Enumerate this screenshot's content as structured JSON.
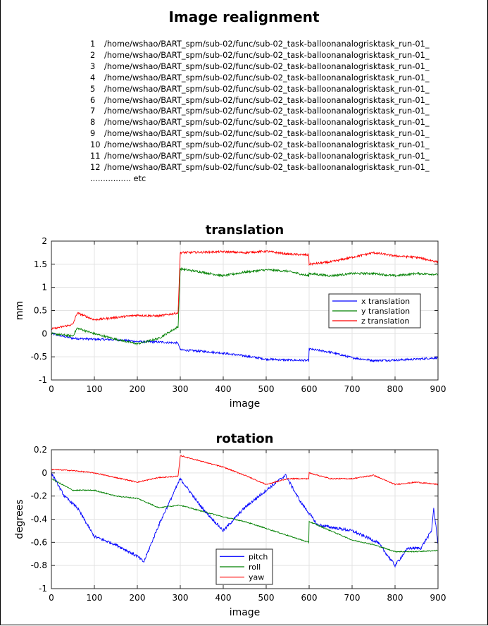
{
  "window": {
    "title": "Image realignment",
    "files": [
      {
        "num": "1",
        "path": "/home/wshao/BART_spm/sub-02/func/sub-02_task-balloonanalogrisktask_run-01_"
      },
      {
        "num": "2",
        "path": "/home/wshao/BART_spm/sub-02/func/sub-02_task-balloonanalogrisktask_run-01_"
      },
      {
        "num": "3",
        "path": "/home/wshao/BART_spm/sub-02/func/sub-02_task-balloonanalogrisktask_run-01_"
      },
      {
        "num": "4",
        "path": "/home/wshao/BART_spm/sub-02/func/sub-02_task-balloonanalogrisktask_run-01_"
      },
      {
        "num": "5",
        "path": "/home/wshao/BART_spm/sub-02/func/sub-02_task-balloonanalogrisktask_run-01_"
      },
      {
        "num": "6",
        "path": "/home/wshao/BART_spm/sub-02/func/sub-02_task-balloonanalogrisktask_run-01_"
      },
      {
        "num": "7",
        "path": "/home/wshao/BART_spm/sub-02/func/sub-02_task-balloonanalogrisktask_run-01_"
      },
      {
        "num": "8",
        "path": "/home/wshao/BART_spm/sub-02/func/sub-02_task-balloonanalogrisktask_run-01_"
      },
      {
        "num": "9",
        "path": "/home/wshao/BART_spm/sub-02/func/sub-02_task-balloonanalogrisktask_run-01_"
      },
      {
        "num": "10",
        "path": "/home/wshao/BART_spm/sub-02/func/sub-02_task-balloonanalogrisktask_run-01_"
      },
      {
        "num": "11",
        "path": "/home/wshao/BART_spm/sub-02/func/sub-02_task-balloonanalogrisktask_run-01_"
      },
      {
        "num": "12",
        "path": "/home/wshao/BART_spm/sub-02/func/sub-02_task-balloonanalogrisktask_run-01_"
      }
    ],
    "etc_label": "................ etc"
  },
  "chart_data": [
    {
      "type": "line",
      "title": "translation",
      "xlabel": "image",
      "ylabel": "mm",
      "xlim": [
        0,
        900
      ],
      "ylim": [
        -1,
        2
      ],
      "xticks": [
        "0",
        "100",
        "200",
        "300",
        "400",
        "500",
        "600",
        "700",
        "800",
        "900"
      ],
      "yticks": [
        "2",
        "1.5",
        "1",
        "0.5",
        "0",
        "-0.5",
        "-1"
      ],
      "grid": true,
      "legend_position": "right",
      "series": [
        {
          "name": "x translation",
          "color": "#0000ff",
          "x": [
            0,
            50,
            100,
            150,
            200,
            250,
            295,
            300,
            350,
            400,
            450,
            500,
            550,
            599,
            600,
            650,
            700,
            750,
            800,
            850,
            900
          ],
          "y": [
            0,
            -0.1,
            -0.12,
            -0.13,
            -0.17,
            -0.18,
            -0.2,
            -0.35,
            -0.38,
            -0.42,
            -0.48,
            -0.55,
            -0.57,
            -0.58,
            -0.33,
            -0.4,
            -0.52,
            -0.58,
            -0.57,
            -0.55,
            -0.52
          ]
        },
        {
          "name": "y translation",
          "color": "#008000",
          "x": [
            0,
            50,
            60,
            100,
            150,
            200,
            250,
            295,
            300,
            350,
            400,
            450,
            500,
            550,
            599,
            600,
            650,
            700,
            750,
            800,
            850,
            900
          ],
          "y": [
            0,
            -0.05,
            0.12,
            0.0,
            -0.12,
            -0.22,
            -0.1,
            0.15,
            1.4,
            1.33,
            1.25,
            1.33,
            1.38,
            1.35,
            1.25,
            1.3,
            1.25,
            1.3,
            1.3,
            1.25,
            1.3,
            1.28
          ]
        },
        {
          "name": "z translation",
          "color": "#ff0000",
          "x": [
            0,
            50,
            60,
            100,
            150,
            200,
            250,
            295,
            300,
            350,
            400,
            450,
            500,
            550,
            599,
            600,
            650,
            700,
            750,
            800,
            850,
            900
          ],
          "y": [
            0.1,
            0.2,
            0.45,
            0.3,
            0.35,
            0.4,
            0.38,
            0.45,
            1.75,
            1.76,
            1.77,
            1.75,
            1.78,
            1.72,
            1.7,
            1.5,
            1.55,
            1.65,
            1.75,
            1.68,
            1.65,
            1.55
          ]
        }
      ]
    },
    {
      "type": "line",
      "title": "rotation",
      "xlabel": "image",
      "ylabel": "degrees",
      "xlim": [
        0,
        900
      ],
      "ylim": [
        -1,
        0.2
      ],
      "xticks": [
        "0",
        "100",
        "200",
        "300",
        "400",
        "500",
        "600",
        "700",
        "800",
        "900"
      ],
      "yticks": [
        "0.2",
        "0",
        "-0.2",
        "-0.4",
        "-0.6",
        "-0.8",
        "-1"
      ],
      "grid": true,
      "legend_position": "bottom",
      "series": [
        {
          "name": "pitch",
          "color": "#0000ff",
          "x": [
            0,
            30,
            60,
            100,
            150,
            200,
            215,
            250,
            300,
            350,
            400,
            450,
            500,
            545,
            580,
            620,
            700,
            760,
            800,
            830,
            860,
            885,
            890,
            900
          ],
          "y": [
            0,
            -0.2,
            -0.3,
            -0.55,
            -0.62,
            -0.72,
            -0.77,
            -0.45,
            -0.05,
            -0.3,
            -0.5,
            -0.3,
            -0.15,
            -0.02,
            -0.25,
            -0.45,
            -0.5,
            -0.6,
            -0.8,
            -0.65,
            -0.65,
            -0.5,
            -0.3,
            -0.62
          ]
        },
        {
          "name": "roll",
          "color": "#008000",
          "x": [
            0,
            50,
            100,
            150,
            200,
            250,
            295,
            300,
            350,
            400,
            450,
            500,
            550,
            599,
            600,
            650,
            700,
            750,
            800,
            850,
            900
          ],
          "y": [
            -0.05,
            -0.15,
            -0.15,
            -0.2,
            -0.22,
            -0.3,
            -0.28,
            -0.28,
            -0.33,
            -0.38,
            -0.42,
            -0.48,
            -0.54,
            -0.6,
            -0.42,
            -0.5,
            -0.58,
            -0.62,
            -0.68,
            -0.68,
            -0.67
          ]
        },
        {
          "name": "yaw",
          "color": "#ff0000",
          "x": [
            0,
            50,
            100,
            150,
            200,
            250,
            295,
            300,
            350,
            400,
            450,
            500,
            550,
            599,
            600,
            650,
            700,
            750,
            800,
            850,
            900
          ],
          "y": [
            0.03,
            0.02,
            0.0,
            -0.04,
            -0.08,
            -0.04,
            -0.03,
            0.15,
            0.1,
            0.05,
            -0.02,
            -0.1,
            -0.05,
            -0.05,
            0.0,
            -0.05,
            -0.05,
            -0.02,
            -0.1,
            -0.08,
            -0.1
          ]
        }
      ]
    }
  ]
}
